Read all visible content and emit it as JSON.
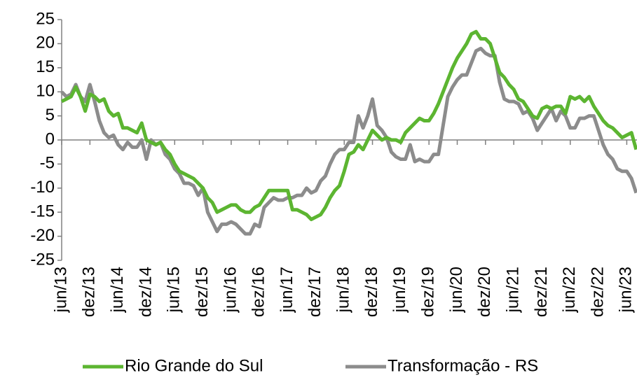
{
  "chart_data": {
    "type": "line",
    "categories": [
      "jun/13",
      null,
      null,
      null,
      null,
      null,
      "dez/13",
      null,
      null,
      null,
      null,
      null,
      "jun/14",
      null,
      null,
      null,
      null,
      null,
      "dez/14",
      null,
      null,
      null,
      null,
      null,
      "jun/15",
      null,
      null,
      null,
      null,
      null,
      "dez/15",
      null,
      null,
      null,
      null,
      null,
      "jun/16",
      null,
      null,
      null,
      null,
      null,
      "dez/16",
      null,
      null,
      null,
      null,
      null,
      "jun/17",
      null,
      null,
      null,
      null,
      null,
      "dez/17",
      null,
      null,
      null,
      null,
      null,
      "jun/18",
      null,
      null,
      null,
      null,
      null,
      "dez/18",
      null,
      null,
      null,
      null,
      null,
      "jun/19",
      null,
      null,
      null,
      null,
      null,
      "dez/19",
      null,
      null,
      null,
      null,
      null,
      "jun/20",
      null,
      null,
      null,
      null,
      null,
      "dez/20",
      null,
      null,
      null,
      null,
      null,
      "jun/21",
      null,
      null,
      null,
      null,
      null,
      "dez/21",
      null,
      null,
      null,
      null,
      null,
      "jun/22",
      null,
      null,
      null,
      null,
      null,
      "dez/22",
      null,
      null,
      null,
      null,
      null,
      "jun/23",
      null,
      null
    ],
    "series": [
      {
        "name": "Rio Grande do Sul",
        "color": "#5cb531",
        "values": [
          8,
          8.5,
          9,
          11,
          9,
          6,
          9.5,
          9,
          8,
          8.5,
          6,
          5,
          5.5,
          2.5,
          2.5,
          2,
          1.5,
          3.5,
          0,
          -0.5,
          -1,
          -0.5,
          -2,
          -3,
          -5,
          -6.5,
          -7,
          -7.5,
          -8,
          -9,
          -10,
          -12,
          -13,
          -15,
          -14.5,
          -14,
          -13.5,
          -13.5,
          -14.5,
          -15,
          -15,
          -14,
          -13.5,
          -12,
          -10.5,
          -10.5,
          -10.5,
          -10.5,
          -10.5,
          -14.5,
          -14.5,
          -15,
          -15.5,
          -16.5,
          -16,
          -15.5,
          -14,
          -12,
          -10.5,
          -9.5,
          -6.5,
          -3,
          -2.5,
          -1,
          -2,
          0,
          2,
          1,
          0,
          0.5,
          0,
          0,
          -0.5,
          1.5,
          2.5,
          3.5,
          4.5,
          4,
          4,
          5.5,
          7.5,
          10,
          12.5,
          15,
          17,
          18.5,
          20,
          22,
          22.5,
          21,
          21,
          20,
          17,
          14,
          13,
          11.5,
          10.5,
          8.5,
          8,
          6.5,
          5,
          4.5,
          6.5,
          7,
          6.5,
          7,
          7,
          5.5,
          9,
          8.5,
          9,
          8,
          9,
          7,
          5.5,
          4,
          3,
          2.5,
          1.5,
          0.5,
          1,
          1.5,
          -2
        ]
      },
      {
        "name": "Transformação - RS",
        "color": "#8c8c8c",
        "values": [
          10,
          9,
          9.5,
          11.5,
          9,
          8,
          11.5,
          8,
          4,
          1.5,
          0.5,
          1,
          -1,
          -2,
          -0.5,
          -1.5,
          -1.5,
          0,
          -4,
          0,
          -1,
          -0.5,
          -3,
          -4,
          -6,
          -7,
          -9,
          -9,
          -9.5,
          -11.5,
          -10,
          -15,
          -17,
          -19,
          -17.5,
          -17.5,
          -17,
          -17.5,
          -18.5,
          -19.5,
          -19.5,
          -17.5,
          -18,
          -14,
          -13,
          -12,
          -12.5,
          -12.5,
          -12,
          -12,
          -11.5,
          -11.5,
          -10,
          -11,
          -10.5,
          -8.5,
          -7.5,
          -5,
          -3,
          -2,
          -2,
          -0.5,
          -0.5,
          5,
          2.5,
          5,
          8.5,
          3,
          2,
          0.5,
          -2.5,
          -3.5,
          -4,
          -4,
          -1,
          -4.5,
          -4,
          -4.5,
          -4.5,
          -3,
          -3,
          3,
          9,
          11,
          12.5,
          13.5,
          13.5,
          16,
          18.5,
          19,
          18,
          17.5,
          17.5,
          12,
          8.5,
          8,
          8,
          7.5,
          5.5,
          6,
          4.5,
          2,
          3.5,
          5,
          6.5,
          4,
          6,
          5,
          2.5,
          2.5,
          4.5,
          4.5,
          5,
          5,
          2,
          -1,
          -3,
          -4,
          -6,
          -6.5,
          -6.5,
          -8,
          -11
        ]
      }
    ],
    "ylim": [
      -25,
      25
    ],
    "yticks": [
      -25,
      -20,
      -15,
      -10,
      -5,
      0,
      5,
      10,
      15,
      20,
      25
    ],
    "legend": "bottom"
  }
}
